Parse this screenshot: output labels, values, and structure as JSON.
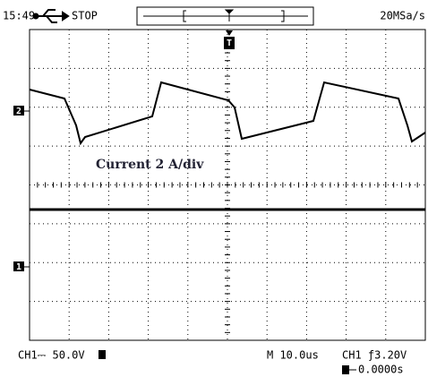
{
  "header": {
    "time": "15:49",
    "status": "STOP",
    "sample_rate": "20MSa/s"
  },
  "annotation": "Current 2 A/div",
  "markers": {
    "ch2": "2",
    "ch1": "1",
    "trigger": "T"
  },
  "footer": {
    "ch1_scale": "CH1⎓ 50.0V",
    "timebase": "M 10.0us",
    "trigger_level": "CH1 ƒ3.20V",
    "trigger_position": "0.0000s"
  }
}
